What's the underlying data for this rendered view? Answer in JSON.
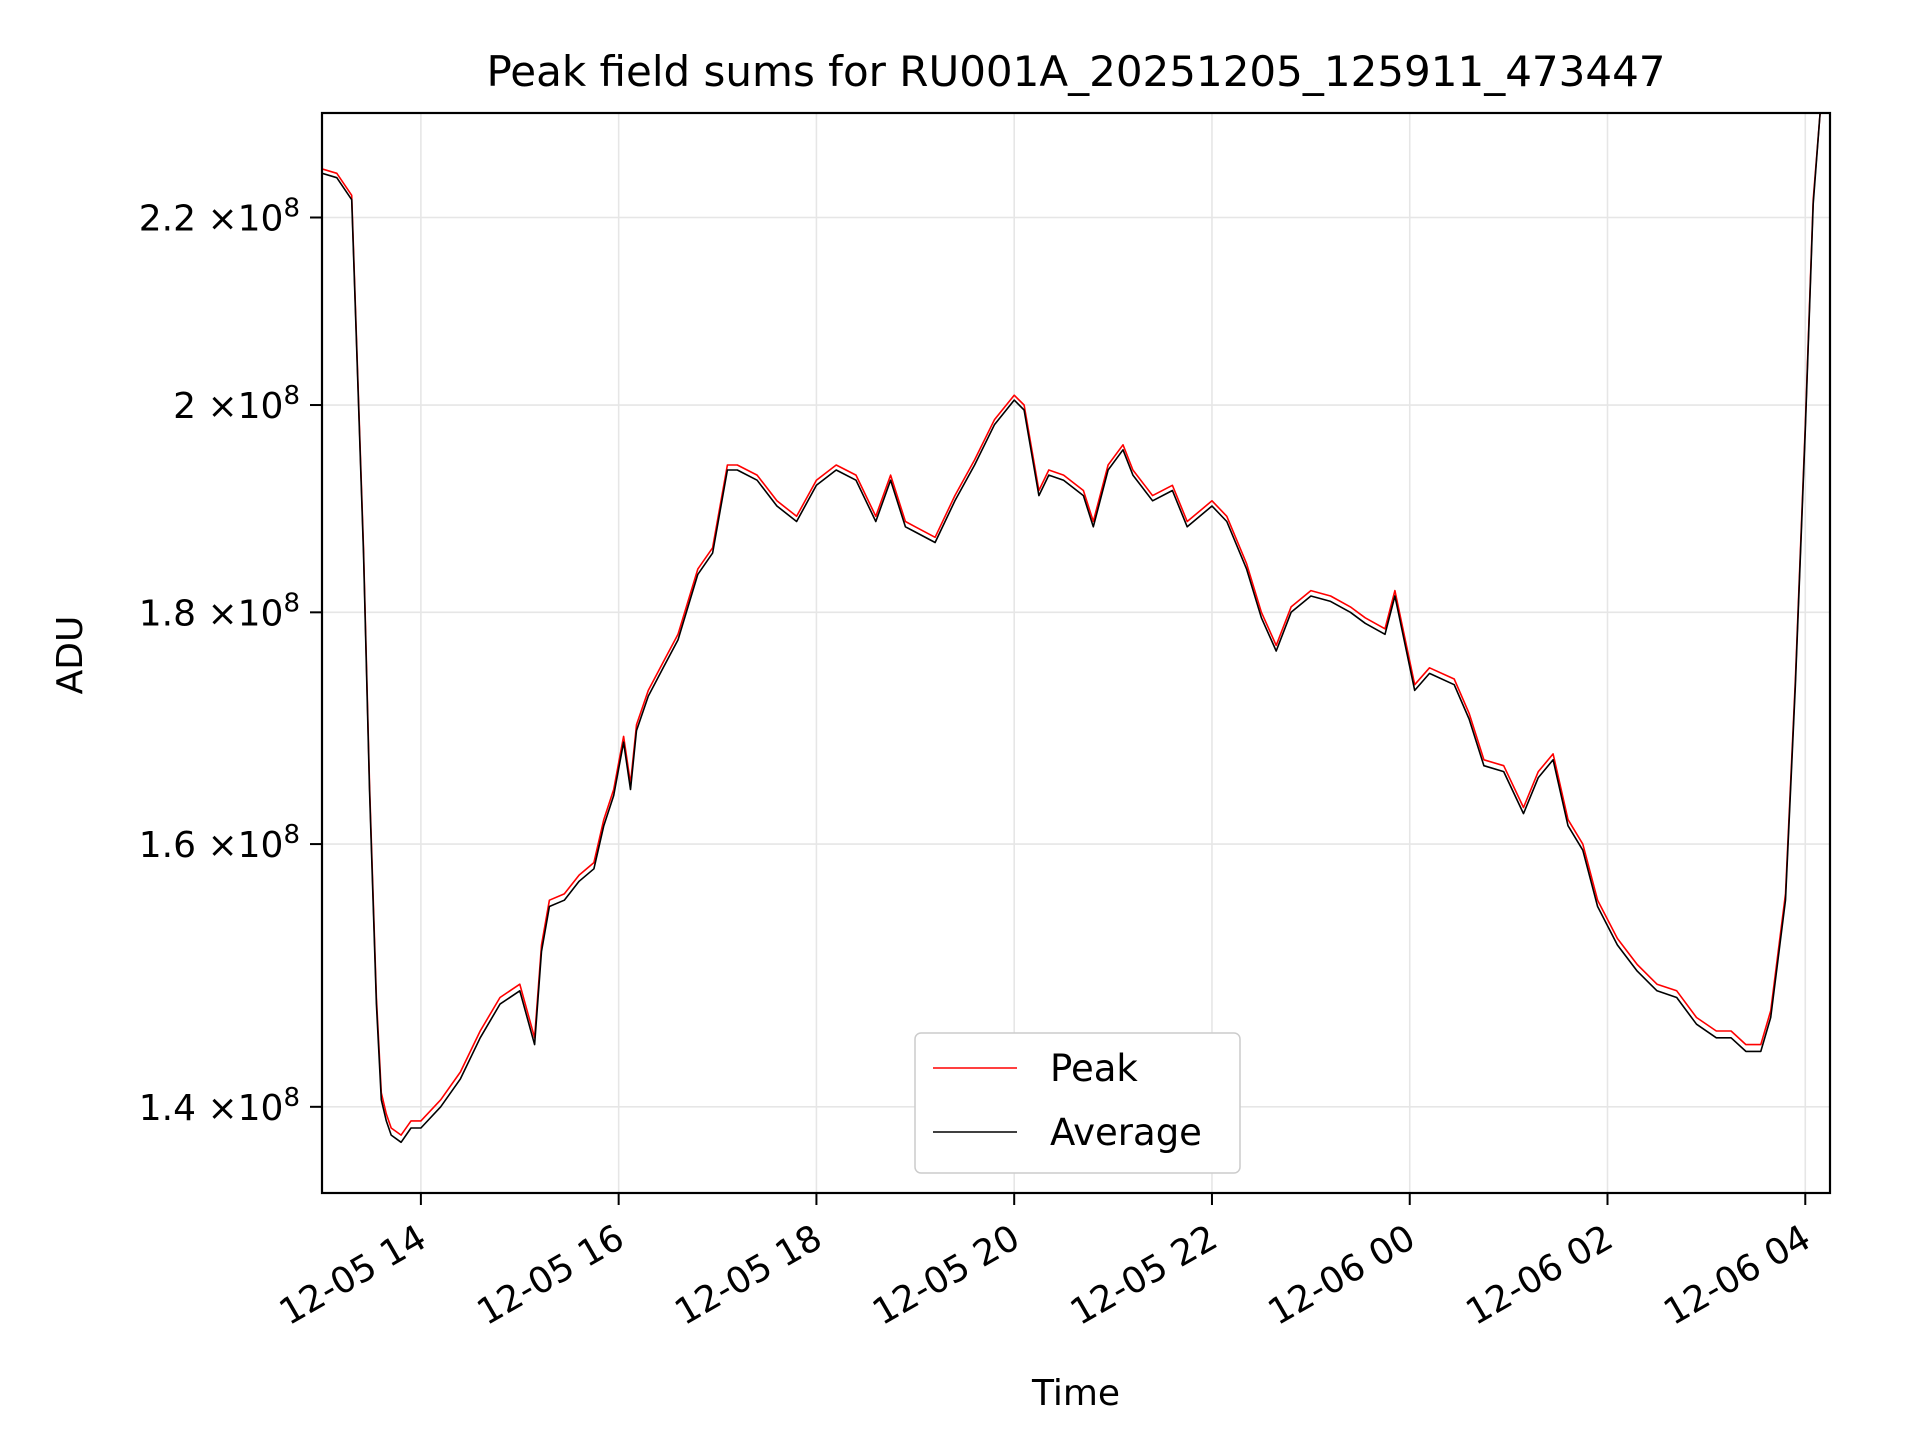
{
  "chart_data": {
    "type": "line",
    "title": "Peak field sums for RU001A_20251205_125911_473447",
    "xlabel": "Time",
    "ylabel": "ADU",
    "y_scale": "log",
    "xlim_hours": [
      13.0,
      28.25
    ],
    "ylim": [
      134000000,
      232000000
    ],
    "grid": true,
    "x_tick_hours": [
      14,
      16,
      18,
      20,
      22,
      24,
      26,
      28
    ],
    "x_tick_labels": [
      "12-05 14",
      "12-05 16",
      "12-05 18",
      "12-05 20",
      "12-05 22",
      "12-06 00",
      "12-06 02",
      "12-06 04"
    ],
    "y_ticks": [
      {
        "value": 140000000,
        "mantissa": "1.4",
        "exponent": "8"
      },
      {
        "value": 160000000,
        "mantissa": "1.6",
        "exponent": "8"
      },
      {
        "value": 180000000,
        "mantissa": "1.8",
        "exponent": "8"
      },
      {
        "value": 200000000,
        "mantissa": "2",
        "exponent": "8"
      },
      {
        "value": 220000000,
        "mantissa": "2.2",
        "exponent": "8"
      }
    ],
    "tick_label_times": "×10",
    "legend_position": "lower center",
    "x_hours": [
      13.0,
      13.15,
      13.3,
      13.42,
      13.48,
      13.55,
      13.6,
      13.65,
      13.7,
      13.8,
      13.9,
      14.0,
      14.2,
      14.4,
      14.6,
      14.8,
      15.0,
      15.15,
      15.22,
      15.3,
      15.45,
      15.6,
      15.75,
      15.85,
      15.95,
      16.05,
      16.12,
      16.18,
      16.3,
      16.45,
      16.6,
      16.8,
      16.95,
      17.1,
      17.2,
      17.4,
      17.6,
      17.8,
      18.0,
      18.2,
      18.4,
      18.6,
      18.75,
      18.9,
      19.0,
      19.2,
      19.4,
      19.6,
      19.8,
      20.0,
      20.1,
      20.25,
      20.35,
      20.5,
      20.7,
      20.8,
      20.95,
      21.1,
      21.2,
      21.4,
      21.6,
      21.75,
      22.0,
      22.15,
      22.35,
      22.5,
      22.65,
      22.8,
      23.0,
      23.2,
      23.4,
      23.55,
      23.75,
      23.85,
      24.05,
      24.2,
      24.45,
      24.6,
      24.75,
      24.95,
      25.15,
      25.3,
      25.45,
      25.6,
      25.75,
      25.9,
      26.1,
      26.3,
      26.5,
      26.7,
      26.9,
      27.1,
      27.25,
      27.4,
      27.55,
      27.65,
      27.8,
      27.9,
      28.0,
      28.08,
      28.15
    ],
    "series": [
      {
        "name": "Peak",
        "color": "#ff0000",
        "values": [
          225500000,
          225000000,
          222500000,
          186000000,
          165000000,
          148000000,
          141000000,
          139500000,
          138500000,
          138000000,
          139000000,
          139000000,
          140500000,
          142500000,
          145500000,
          148000000,
          149000000,
          145000000,
          152000000,
          155500000,
          156000000,
          157500000,
          158500000,
          162000000,
          164500000,
          169000000,
          165000000,
          170000000,
          173000000,
          175500000,
          178000000,
          184000000,
          186000000,
          194000000,
          194000000,
          193000000,
          190500000,
          189000000,
          192500000,
          194000000,
          193000000,
          189000000,
          193000000,
          188500000,
          188000000,
          187000000,
          191000000,
          194500000,
          198500000,
          201000000,
          200000000,
          191500000,
          193500000,
          193000000,
          191500000,
          188500000,
          194000000,
          196000000,
          193500000,
          191000000,
          192000000,
          188500000,
          190500000,
          189000000,
          184500000,
          180000000,
          177000000,
          180500000,
          182000000,
          181500000,
          180500000,
          179500000,
          178500000,
          182000000,
          173500000,
          175000000,
          174000000,
          171000000,
          167000000,
          166500000,
          163000000,
          166000000,
          167500000,
          162000000,
          160000000,
          155500000,
          152500000,
          150500000,
          149000000,
          148500000,
          146500000,
          145500000,
          145500000,
          144500000,
          144500000,
          147000000,
          156000000,
          174000000,
          198000000,
          222000000,
          232000000
        ]
      },
      {
        "name": "Average",
        "color": "#000000",
        "values": [
          225000000,
          224500000,
          222000000,
          185500000,
          164500000,
          147500000,
          140500000,
          139000000,
          138000000,
          137500000,
          138500000,
          138500000,
          140000000,
          142000000,
          145000000,
          147500000,
          148500000,
          144500000,
          151500000,
          155000000,
          155500000,
          157000000,
          158000000,
          161500000,
          164000000,
          168500000,
          164500000,
          169500000,
          172500000,
          175000000,
          177500000,
          183500000,
          185500000,
          193500000,
          193500000,
          192500000,
          190000000,
          188500000,
          192000000,
          193500000,
          192500000,
          188500000,
          192500000,
          188000000,
          187500000,
          186500000,
          190500000,
          194000000,
          198000000,
          200500000,
          199500000,
          191000000,
          193000000,
          192500000,
          191000000,
          188000000,
          193500000,
          195500000,
          193000000,
          190500000,
          191500000,
          188000000,
          190000000,
          188500000,
          184000000,
          179500000,
          176500000,
          180000000,
          181500000,
          181000000,
          180000000,
          179000000,
          178000000,
          181500000,
          173000000,
          174500000,
          173500000,
          170500000,
          166500000,
          166000000,
          162500000,
          165500000,
          167000000,
          161500000,
          159500000,
          155000000,
          152000000,
          150000000,
          148500000,
          148000000,
          146000000,
          145000000,
          145000000,
          144000000,
          144000000,
          146500000,
          155500000,
          173500000,
          197500000,
          221500000,
          232000000
        ]
      }
    ]
  }
}
